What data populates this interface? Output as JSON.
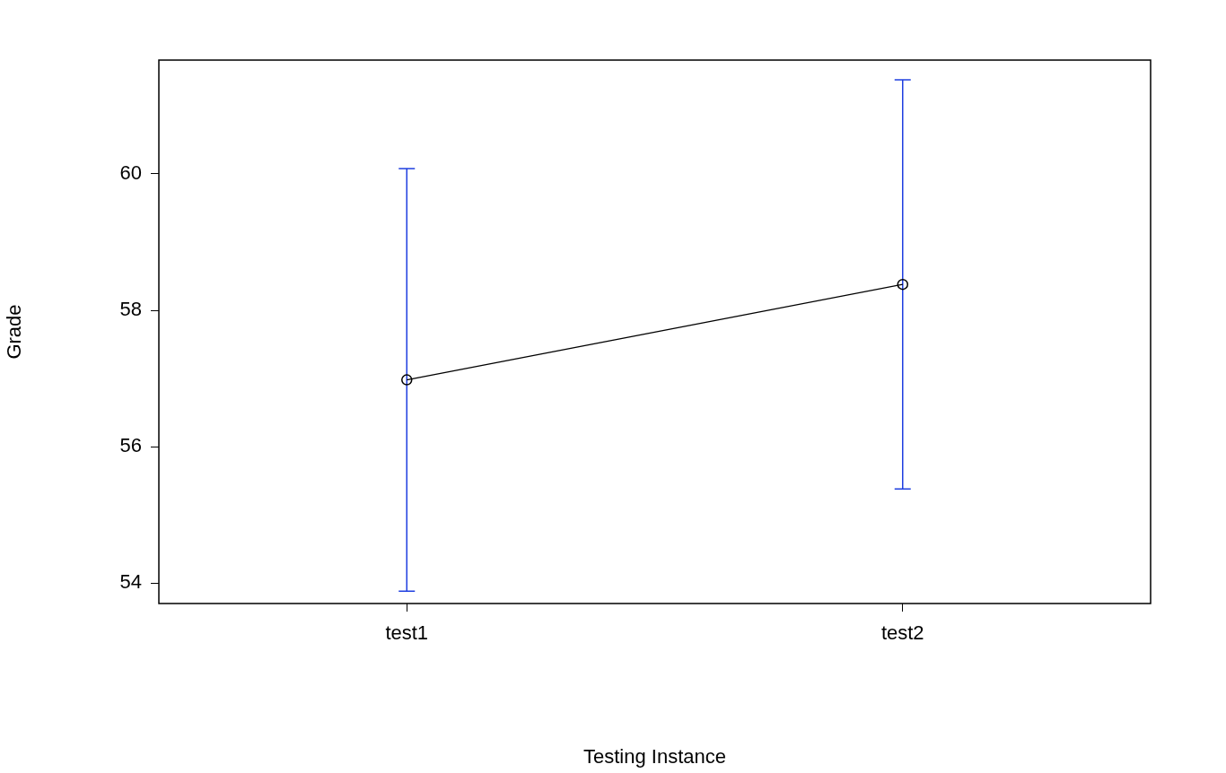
{
  "chart_data": {
    "type": "line",
    "x_label": "Testing Instance",
    "y_label": "Grade",
    "categories": [
      "test1",
      "test2"
    ],
    "values": [
      56.98,
      58.38
    ],
    "ci_lower": [
      53.88,
      55.38
    ],
    "ci_upper": [
      60.08,
      61.38
    ],
    "color": "#000000",
    "marker": "circle",
    "ylim": [
      53.7,
      61.67
    ],
    "yticks": [
      54,
      56,
      58,
      60
    ],
    "grid": false
  }
}
